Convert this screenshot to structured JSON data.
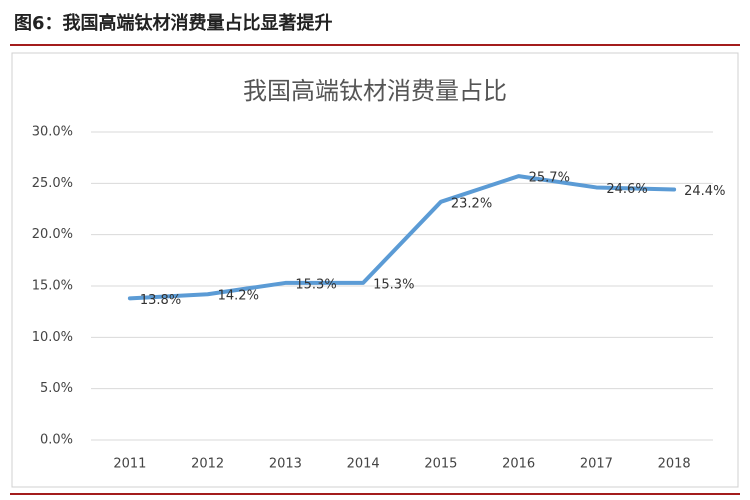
{
  "header": "图6：我国高端钛材消费量占比显著提升",
  "chart_data": {
    "type": "line",
    "title": "我国高端钛材消费量占比",
    "categories": [
      "2011",
      "2012",
      "2013",
      "2014",
      "2015",
      "2016",
      "2017",
      "2018"
    ],
    "values": [
      13.8,
      14.2,
      15.3,
      15.3,
      23.2,
      25.7,
      24.6,
      24.4
    ],
    "value_labels": [
      "13.8%",
      "14.2%",
      "15.3%",
      "15.3%",
      "23.2%",
      "25.7%",
      "24.6%",
      "24.4%"
    ],
    "color": "#5b9bd5",
    "ylim": [
      0,
      30
    ],
    "yticks": [
      {
        "value": 0,
        "label": "0.0%"
      },
      {
        "value": 5,
        "label": "5.0%"
      },
      {
        "value": 10,
        "label": "10.0%"
      },
      {
        "value": 15,
        "label": "15.0%"
      },
      {
        "value": 20,
        "label": "20.0%"
      },
      {
        "value": 25,
        "label": "25.0%"
      },
      {
        "value": 30,
        "label": "30.0%"
      }
    ],
    "grid": true
  }
}
